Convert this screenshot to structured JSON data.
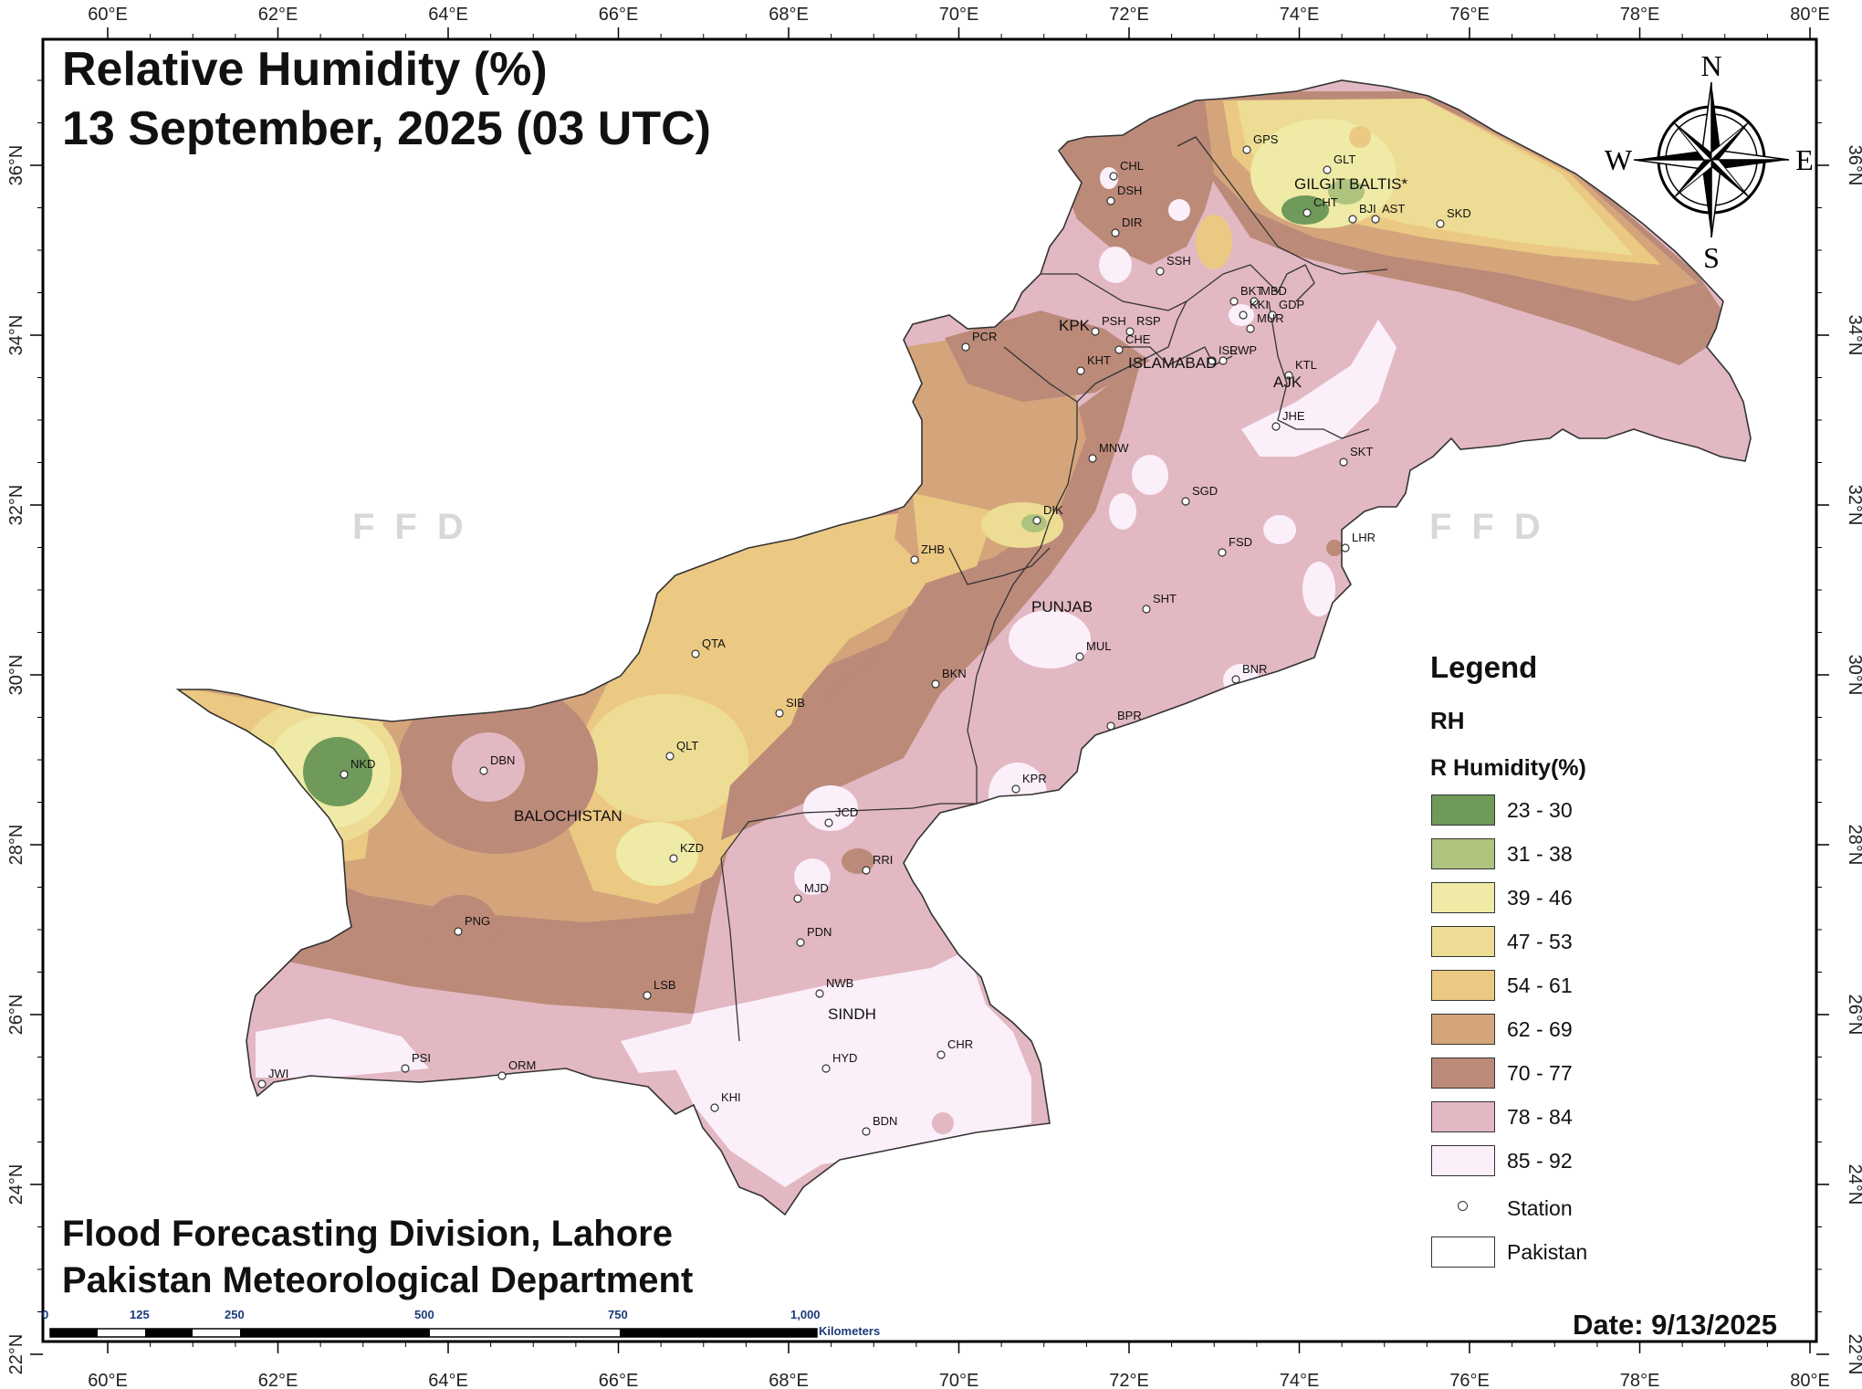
{
  "title": {
    "line1": "Relative Humidity (%)",
    "line2": "13 September, 2025 (03 UTC)"
  },
  "footer": {
    "line1": "Flood Forecasting Division, Lahore",
    "line2": "Pakistan Meteorological Department"
  },
  "date_text": "Date: 9/13/2025",
  "watermark": "FFD",
  "axes": {
    "x_ticks": [
      "60°E",
      "62°E",
      "64°E",
      "66°E",
      "68°E",
      "70°E",
      "72°E",
      "74°E",
      "76°E",
      "78°E",
      "80°E"
    ],
    "y_ticks": [
      "36°N",
      "34°N",
      "32°N",
      "30°N",
      "28°N",
      "26°N",
      "24°N",
      "22°N"
    ]
  },
  "compass": {
    "north": "N",
    "south": "S",
    "east": "E",
    "west": "W"
  },
  "legend": {
    "title": "Legend",
    "layer": "RH",
    "field": "R Humidity(%)",
    "classes": [
      {
        "range": "23 - 30",
        "color": "#6f9a5a"
      },
      {
        "range": "31 - 38",
        "color": "#aec47e"
      },
      {
        "range": "39 - 46",
        "color": "#efeaa6"
      },
      {
        "range": "47 - 53",
        "color": "#eddc93"
      },
      {
        "range": "54 - 61",
        "color": "#ecc983"
      },
      {
        "range": "62 - 69",
        "color": "#d4a57b"
      },
      {
        "range": "70 - 77",
        "color": "#bc8a79"
      },
      {
        "range": "78 - 84",
        "color": "#e2b8c2"
      },
      {
        "range": "85 - 92",
        "color": "#fbeffa"
      }
    ],
    "station_label": "Station",
    "boundary_label": "Pakistan"
  },
  "scale_bar": {
    "labels": [
      "0",
      "125",
      "250",
      "500",
      "750",
      "1,000"
    ],
    "unit": "Kilometers"
  },
  "regions": [
    "GILGIT BALTIS*",
    "KPK",
    "ISLAMABAD",
    "AJK",
    "PUNJAB",
    "BALOCHISTAN",
    "SINDH"
  ],
  "stations": [
    "GPS",
    "GLT",
    "CHL",
    "DSH",
    "DIR",
    "CHT",
    "BJI",
    "AST",
    "SKD",
    "SSH",
    "BKT",
    "MBD",
    "KKI",
    "GDP",
    "MUR",
    "PSH",
    "RSP",
    "CHE",
    "KHT",
    "ISL",
    "RWP",
    "KTL",
    "PCR",
    "JHE",
    "SKT",
    "MNW",
    "SGD",
    "DIK",
    "ZHB",
    "LHR",
    "FSD",
    "SHT",
    "QTA",
    "MUL",
    "BKN",
    "BNR",
    "SIB",
    "BPR",
    "NKD",
    "DBN",
    "QLT",
    "KPR",
    "JCD",
    "KZD",
    "RRI",
    "MJD",
    "PDN",
    "PNG",
    "LSB",
    "NWB",
    "CHR",
    "HYD",
    "PSI",
    "ORM",
    "JWI",
    "KHI",
    "BDN"
  ],
  "colors": {
    "background": "#ffffff",
    "frame": "#000000",
    "label_blue": "#1b3a7a"
  }
}
